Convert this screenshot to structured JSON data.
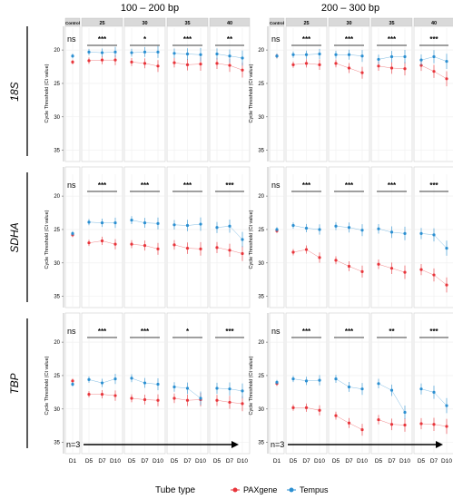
{
  "figure": {
    "group_titles": [
      "100 – 200 bp",
      "200 – 300 bp"
    ],
    "row_titles": [
      "18S",
      "SDHA",
      "TBP"
    ],
    "panel_headers": [
      "Control",
      "25",
      "30",
      "35",
      "40"
    ],
    "y_axis_label": "Cycle Threshold (Ct value)",
    "y_ticks": [
      20,
      25,
      30,
      35
    ],
    "x_tick_control": "D1",
    "x_ticks_day": [
      "D5",
      "D7",
      "D10"
    ],
    "n_label": "n=3",
    "legend": {
      "title": "Tube type",
      "items": [
        {
          "label": "PAXgene",
          "color": "#e8353b"
        },
        {
          "label": "Tempus",
          "color": "#2b8fd1"
        }
      ]
    }
  },
  "chart_data": {
    "type": "scatter",
    "facets": "rows = gene (18S, SDHA, TBP); column groups = amplicon size (100–200 bp, 200–300 bp); panels = Control, 25, 30, 35, 40",
    "x": [
      "D1",
      "D5",
      "D7",
      "D10"
    ],
    "ylim": [
      17,
      36
    ],
    "y_reversed": true,
    "series_names": [
      "PAXgene",
      "Tempus"
    ],
    "significance_labels": {
      "100-200_18S": [
        "ns",
        "***",
        "*",
        "***",
        "**"
      ],
      "100-200_SDHA": [
        "ns",
        "***",
        "***",
        "***",
        "***"
      ],
      "100-200_TBP": [
        "ns",
        "***",
        "***",
        "*",
        "***"
      ],
      "200-300_18S": [
        "ns",
        "***",
        "***",
        "***",
        "***"
      ],
      "200-300_SDHA": [
        "ns",
        "***",
        "***",
        "***",
        "***"
      ],
      "200-300_TBP": [
        "ns",
        "***",
        "***",
        "**",
        "***"
      ]
    },
    "values": {
      "100-200_18S": {
        "PAXgene": [
          [
            21.8
          ],
          [
            21.6,
            21.5,
            21.5
          ],
          [
            21.8,
            22.0,
            22.4
          ],
          [
            21.9,
            22.2,
            22.1
          ],
          [
            22.0,
            22.3,
            23.0
          ]
        ],
        "Tempus": [
          [
            20.9
          ],
          [
            20.3,
            20.4,
            20.3
          ],
          [
            20.4,
            20.3,
            20.3
          ],
          [
            20.5,
            20.6,
            20.7
          ],
          [
            20.6,
            20.9,
            21.2
          ]
        ]
      },
      "100-200_SDHA": {
        "PAXgene": [
          [
            25.8
          ],
          [
            27.0,
            26.7,
            27.2
          ],
          [
            27.2,
            27.4,
            27.9
          ],
          [
            27.3,
            27.8,
            27.9
          ],
          [
            27.7,
            28.1,
            28.6
          ]
        ],
        "Tempus": [
          [
            25.6
          ],
          [
            23.9,
            24.0,
            24.0
          ],
          [
            23.6,
            24.0,
            24.1
          ],
          [
            24.3,
            24.4,
            24.2
          ],
          [
            24.7,
            24.5,
            26.5
          ]
        ]
      },
      "100-200_TBP": {
        "PAXgene": [
          [
            25.8
          ],
          [
            27.8,
            27.8,
            28.0
          ],
          [
            28.4,
            28.6,
            28.7
          ],
          [
            28.4,
            28.7,
            28.6
          ],
          [
            28.7,
            29.0,
            29.2
          ]
        ],
        "Tempus": [
          [
            26.3
          ],
          [
            25.6,
            26.1,
            25.5
          ],
          [
            25.4,
            26.1,
            26.3
          ],
          [
            26.7,
            26.9,
            28.4
          ],
          [
            26.9,
            27.0,
            27.3
          ]
        ]
      },
      "200-300_18S": {
        "PAXgene": [
          [
            20.9
          ],
          [
            22.2,
            22.0,
            22.2
          ],
          [
            22.0,
            22.7,
            23.4
          ],
          [
            22.4,
            22.7,
            22.8
          ],
          [
            22.3,
            23.2,
            24.3
          ]
        ],
        "Tempus": [
          [
            20.9
          ],
          [
            20.7,
            20.7,
            20.6
          ],
          [
            20.7,
            20.7,
            20.9
          ],
          [
            21.4,
            21.0,
            21.0
          ],
          [
            21.5,
            21.0,
            21.7
          ]
        ]
      },
      "200-300_SDHA": {
        "PAXgene": [
          [
            25.2
          ],
          [
            28.4,
            28.0,
            29.2
          ],
          [
            29.6,
            30.5,
            31.3
          ],
          [
            30.2,
            30.8,
            31.4
          ],
          [
            31.0,
            31.8,
            33.3
          ]
        ],
        "Tempus": [
          [
            25.0
          ],
          [
            24.4,
            24.8,
            25.0
          ],
          [
            24.5,
            24.7,
            25.1
          ],
          [
            24.9,
            25.4,
            25.6
          ],
          [
            25.6,
            25.8,
            27.8
          ]
        ]
      },
      "200-300_TBP": {
        "PAXgene": [
          [
            26.2
          ],
          [
            29.8,
            29.8,
            30.2
          ],
          [
            31.0,
            32.1,
            33.1
          ],
          [
            31.6,
            32.3,
            32.4
          ],
          [
            32.2,
            32.3,
            32.6
          ]
        ],
        "Tempus": [
          [
            26.0
          ],
          [
            25.5,
            25.8,
            25.7
          ],
          [
            25.5,
            26.7,
            27.0
          ],
          [
            26.2,
            27.2,
            30.5
          ],
          [
            27.0,
            27.5,
            29.5
          ]
        ]
      }
    },
    "error_bars": "±SD, estimated",
    "trend_arrow_label": "n=3"
  }
}
